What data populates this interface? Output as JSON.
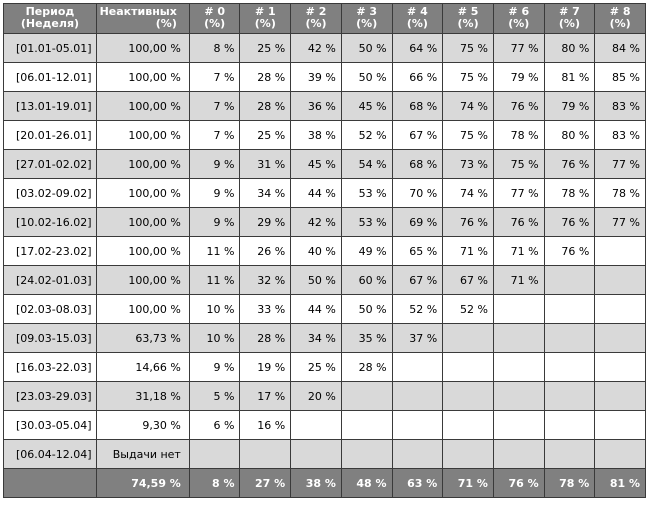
{
  "headers": {
    "period": "Период (Неделя)",
    "inactive": "Неактивных (%)",
    "cohorts": [
      "# 0 (%)",
      "# 1 (%)",
      "# 2 (%)",
      "# 3 (%)",
      "# 4 (%)",
      "# 5 (%)",
      "# 6 (%)",
      "# 7 (%)",
      "# 8 (%)"
    ]
  },
  "rows": [
    {
      "period": "[01.01-05.01]",
      "inactive": "100,00 %",
      "values": [
        "8 %",
        "25 %",
        "42 %",
        "50 %",
        "64 %",
        "75 %",
        "77 %",
        "80 %",
        "84 %"
      ]
    },
    {
      "period": "[06.01-12.01]",
      "inactive": "100,00 %",
      "values": [
        "7 %",
        "28 %",
        "39 %",
        "50 %",
        "66 %",
        "75 %",
        "79 %",
        "81 %",
        "85 %"
      ]
    },
    {
      "period": "[13.01-19.01]",
      "inactive": "100,00 %",
      "values": [
        "7 %",
        "28 %",
        "36 %",
        "45 %",
        "68 %",
        "74 %",
        "76 %",
        "79 %",
        "83 %"
      ]
    },
    {
      "period": "[20.01-26.01]",
      "inactive": "100,00 %",
      "values": [
        "7 %",
        "25 %",
        "38 %",
        "52 %",
        "67 %",
        "75 %",
        "78 %",
        "80 %",
        "83 %"
      ]
    },
    {
      "period": "[27.01-02.02]",
      "inactive": "100,00 %",
      "values": [
        "9 %",
        "31 %",
        "45 %",
        "54 %",
        "68 %",
        "73 %",
        "75 %",
        "76 %",
        "77 %"
      ]
    },
    {
      "period": "[03.02-09.02]",
      "inactive": "100,00 %",
      "values": [
        "9 %",
        "34 %",
        "44 %",
        "53 %",
        "70 %",
        "74 %",
        "77 %",
        "78 %",
        "78 %"
      ]
    },
    {
      "period": "[10.02-16.02]",
      "inactive": "100,00 %",
      "values": [
        "9 %",
        "29 %",
        "42 %",
        "53 %",
        "69 %",
        "76 %",
        "76 %",
        "76 %",
        "77 %"
      ]
    },
    {
      "period": "[17.02-23.02]",
      "inactive": "100,00 %",
      "values": [
        "11 %",
        "26 %",
        "40 %",
        "49 %",
        "65 %",
        "71 %",
        "71 %",
        "76 %",
        ""
      ]
    },
    {
      "period": "[24.02-01.03]",
      "inactive": "100,00 %",
      "values": [
        "11 %",
        "32 %",
        "50 %",
        "60 %",
        "67 %",
        "67 %",
        "71 %",
        "",
        ""
      ]
    },
    {
      "period": "[02.03-08.03]",
      "inactive": "100,00 %",
      "values": [
        "10 %",
        "33 %",
        "44 %",
        "50 %",
        "52 %",
        "52 %",
        "",
        "",
        ""
      ]
    },
    {
      "period": "[09.03-15.03]",
      "inactive": "63,73 %",
      "values": [
        "10 %",
        "28 %",
        "34 %",
        "35 %",
        "37 %",
        "",
        "",
        "",
        ""
      ]
    },
    {
      "period": "[16.03-22.03]",
      "inactive": "14,66 %",
      "values": [
        "9 %",
        "19 %",
        "25 %",
        "28 %",
        "",
        "",
        "",
        "",
        ""
      ]
    },
    {
      "period": "[23.03-29.03]",
      "inactive": "31,18 %",
      "values": [
        "5 %",
        "17 %",
        "20 %",
        "",
        "",
        "",
        "",
        "",
        ""
      ]
    },
    {
      "period": "[30.03-05.04]",
      "inactive": "9,30 %",
      "values": [
        "6 %",
        "16 %",
        "",
        "",
        "",
        "",
        "",
        "",
        ""
      ]
    },
    {
      "period": "[06.04-12.04]",
      "inactive": "Выдачи нет",
      "values": [
        "",
        "",
        "",
        "",
        "",
        "",
        "",
        "",
        ""
      ]
    }
  ],
  "totals": {
    "period": "",
    "inactive": "74,59 %",
    "values": [
      "8 %",
      "27 %",
      "38 %",
      "48 %",
      "63 %",
      "71 %",
      "76 %",
      "78 %",
      "81 %"
    ]
  },
  "colors": {
    "header_bg": "#808080",
    "shade_row": "#d9d9d9",
    "plain_row": "#ffffff",
    "border": "#3a3a3a"
  }
}
